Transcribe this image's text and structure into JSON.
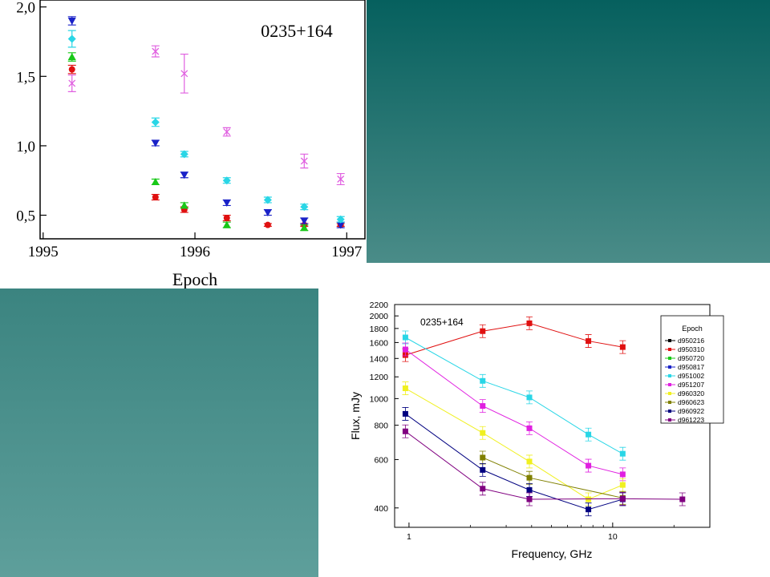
{
  "slide": {
    "panel_color_top": "#06605e",
    "panel_color_bottom": "#5e9f9b"
  },
  "chart_data": [
    {
      "type": "scatter",
      "title": "",
      "annotation": "0235+164",
      "xlabel": "Epoch",
      "ylabel": "",
      "xlim": [
        1994.98,
        1997.12
      ],
      "ylim": [
        0.33,
        2.05
      ],
      "xticks": [
        "1995",
        "1996",
        "1997"
      ],
      "xtick_values": [
        1995,
        1996,
        1997
      ],
      "yticks": [
        "0,5",
        "1,0",
        "1,5",
        "2,0"
      ],
      "ytick_values": [
        0.5,
        1.0,
        1.5,
        2.0
      ],
      "series": [
        {
          "marker": "circle",
          "color": "#e01010",
          "points": [
            [
              1995.19,
              1.55
            ],
            [
              1995.74,
              0.63
            ],
            [
              1995.93,
              0.54
            ],
            [
              1996.21,
              0.48
            ],
            [
              1996.48,
              0.43
            ],
            [
              1996.72,
              0.43
            ],
            [
              1996.96,
              0.43
            ]
          ],
          "err": [
            0.03,
            0.02,
            0.02,
            0.02,
            0.01,
            0.01,
            0.01
          ]
        },
        {
          "marker": "triangle-up",
          "color": "#18c818",
          "points": [
            [
              1995.19,
              1.64
            ],
            [
              1995.74,
              0.74
            ],
            [
              1995.93,
              0.57
            ],
            [
              1996.21,
              0.43
            ],
            [
              1996.72,
              0.41
            ]
          ],
          "err": [
            0.03,
            0.02,
            0.02,
            0.02,
            0.02
          ]
        },
        {
          "marker": "triangle-down",
          "color": "#1a22c8",
          "points": [
            [
              1995.19,
              1.9
            ],
            [
              1995.74,
              1.02
            ],
            [
              1995.93,
              0.79
            ],
            [
              1996.21,
              0.59
            ],
            [
              1996.48,
              0.52
            ],
            [
              1996.72,
              0.46
            ],
            [
              1996.96,
              0.43
            ]
          ],
          "err": [
            0.03,
            0.02,
            0.02,
            0.02,
            0.02,
            0.02,
            0.02
          ]
        },
        {
          "marker": "diamond",
          "color": "#29d6e6",
          "points": [
            [
              1995.19,
              1.77
            ],
            [
              1995.74,
              1.17
            ],
            [
              1995.93,
              0.94
            ],
            [
              1996.21,
              0.75
            ],
            [
              1996.48,
              0.61
            ],
            [
              1996.72,
              0.56
            ],
            [
              1996.96,
              0.47
            ]
          ],
          "err": [
            0.06,
            0.03,
            0.02,
            0.02,
            0.02,
            0.02,
            0.02
          ]
        },
        {
          "marker": "cross",
          "color": "#e060e0",
          "points": [
            [
              1995.19,
              1.45
            ],
            [
              1995.74,
              1.68
            ],
            [
              1995.93,
              1.52
            ],
            [
              1996.21,
              1.1
            ],
            [
              1996.72,
              0.89
            ],
            [
              1996.96,
              0.76
            ]
          ],
          "err": [
            0.06,
            0.04,
            0.14,
            0.03,
            0.05,
            0.04
          ]
        }
      ]
    },
    {
      "type": "line",
      "title": "",
      "annotation": "0235+164",
      "xlabel": "Frequency, GHz",
      "ylabel": "Flux, mJy",
      "xscale": "log",
      "yscale": "log",
      "xlim": [
        0.85,
        30
      ],
      "ylim": [
        340,
        2200
      ],
      "xticks": [
        "1",
        "10"
      ],
      "xtick_values": [
        1,
        10
      ],
      "yticks": [
        "400",
        "600",
        "800",
        "1000",
        "1200",
        "1400",
        "1600",
        "1800",
        "2000",
        "2200"
      ],
      "ytick_values": [
        400,
        600,
        800,
        1000,
        1200,
        1400,
        1600,
        1800,
        2000,
        2200
      ],
      "legend_title": "Epoch",
      "legend_position": "top-right",
      "series": [
        {
          "name": "d950216",
          "color": "#000000",
          "x": [],
          "y": []
        },
        {
          "name": "d950310",
          "color": "#e01010",
          "x": [
            0.96,
            2.3,
            3.9,
            7.6,
            11.2
          ],
          "y": [
            1440,
            1760,
            1880,
            1620,
            1540
          ]
        },
        {
          "name": "d950720",
          "color": "#18c818",
          "x": [],
          "y": []
        },
        {
          "name": "d950817",
          "color": "#1a22c8",
          "x": [],
          "y": []
        },
        {
          "name": "d951002",
          "color": "#29d6e6",
          "x": [
            0.96,
            2.3,
            3.9,
            7.6,
            11.2
          ],
          "y": [
            1670,
            1160,
            1010,
            740,
            630
          ]
        },
        {
          "name": "d951207",
          "color": "#e020e0",
          "x": [
            0.96,
            2.3,
            3.9,
            7.6,
            11.2
          ],
          "y": [
            1510,
            940,
            780,
            570,
            530
          ]
        },
        {
          "name": "d960320",
          "color": "#f0f020",
          "x": [
            0.96,
            2.3,
            3.9,
            7.6,
            11.2
          ],
          "y": [
            1090,
            750,
            590,
            430,
            485
          ]
        },
        {
          "name": "d960623",
          "color": "#808000",
          "x": [
            2.3,
            3.9,
            11.2
          ],
          "y": [
            610,
            515,
            435
          ]
        },
        {
          "name": "d960922",
          "color": "#000080",
          "x": [
            0.96,
            2.3,
            3.9,
            7.6,
            11.2
          ],
          "y": [
            880,
            550,
            465,
            395,
            430
          ]
        },
        {
          "name": "d961223",
          "color": "#800080",
          "x": [
            0.96,
            2.3,
            3.9,
            11.2,
            22
          ],
          "y": [
            760,
            470,
            430,
            432,
            430
          ]
        }
      ]
    }
  ]
}
